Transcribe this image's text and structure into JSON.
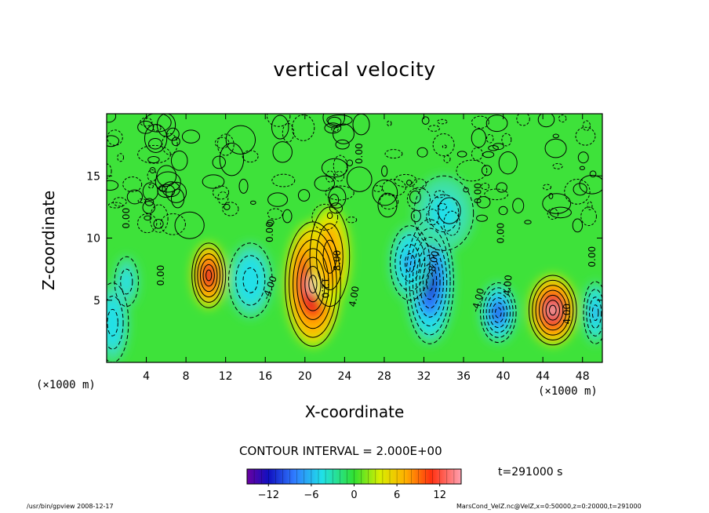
{
  "chart_data": {
    "type": "heatmap",
    "title": "vertical velocity",
    "xlabel": "X-coordinate",
    "ylabel": "Z-coordinate",
    "x_unit_left": "(×1000 m)",
    "x_unit_right": "(×1000 m)",
    "xlim": [
      0,
      50
    ],
    "ylim": [
      0,
      20
    ],
    "x_ticks": [
      4,
      8,
      12,
      16,
      20,
      24,
      28,
      32,
      36,
      40,
      44,
      48
    ],
    "x_tick_labels": [
      "4",
      "8",
      "12",
      "16",
      "20",
      "24",
      "28",
      "32",
      "36",
      "40",
      "44",
      "48"
    ],
    "y_ticks": [
      5,
      10,
      15
    ],
    "y_tick_labels": [
      "5",
      "10",
      "15"
    ],
    "colorbar": {
      "min": -15,
      "max": 15,
      "ticks": [
        -12,
        -6,
        0,
        6,
        12
      ],
      "tick_labels": [
        "−12",
        "−6",
        "0",
        "6",
        "12"
      ]
    },
    "contour_interval": "CONTOUR INTERVAL = 2.000E+00",
    "time": "t=291000 s",
    "cells": [
      {
        "x": 0.6,
        "z": 3.2,
        "value": -6,
        "rx": 1.6,
        "rz": 3.2
      },
      {
        "x": 2.0,
        "z": 6.5,
        "value": -4,
        "rx": 1.2,
        "rz": 2.0
      },
      {
        "x": 10.3,
        "z": 7.0,
        "value": 11,
        "rx": 1.7,
        "rz": 2.6
      },
      {
        "x": 14.5,
        "z": 6.6,
        "value": -6,
        "rx": 2.2,
        "rz": 3.0
      },
      {
        "x": 20.8,
        "z": 6.3,
        "value": 14,
        "rx": 2.8,
        "rz": 5.0
      },
      {
        "x": 22.5,
        "z": 8.5,
        "value": 6,
        "rx": 2.0,
        "rz": 4.0
      },
      {
        "x": 32.6,
        "z": 6.5,
        "value": -13,
        "rx": 2.4,
        "rz": 5.0
      },
      {
        "x": 30.6,
        "z": 8.0,
        "value": -7,
        "rx": 2.0,
        "rz": 3.0
      },
      {
        "x": 34.0,
        "z": 12.0,
        "value": -4,
        "rx": 3.0,
        "rz": 3.0
      },
      {
        "x": 39.5,
        "z": 4.0,
        "value": -12,
        "rx": 1.8,
        "rz": 2.4
      },
      {
        "x": 45.0,
        "z": 4.2,
        "value": 13,
        "rx": 2.4,
        "rz": 2.8
      },
      {
        "x": 49.3,
        "z": 4.0,
        "value": -7,
        "rx": 1.2,
        "rz": 2.5
      }
    ],
    "contour_labels": [
      {
        "x": 5.5,
        "z": 7.0,
        "text": "0.00",
        "angle": -90
      },
      {
        "x": 16.5,
        "z": 6.0,
        "text": "-4.00",
        "angle": -70
      },
      {
        "x": 22.0,
        "z": 6.0,
        "text": "12.0",
        "angle": 90
      },
      {
        "x": 23.3,
        "z": 8.2,
        "text": "8.00",
        "angle": -90
      },
      {
        "x": 25.0,
        "z": 5.3,
        "text": "4.00",
        "angle": -80
      },
      {
        "x": 16.5,
        "z": 10.5,
        "text": "0.00",
        "angle": -90
      },
      {
        "x": 25.5,
        "z": 16.8,
        "text": "0.00",
        "angle": -90
      },
      {
        "x": 33.0,
        "z": 8.0,
        "text": "-8.00",
        "angle": -80
      },
      {
        "x": 37.5,
        "z": 5.0,
        "text": "-4.00",
        "angle": -75
      },
      {
        "x": 40.5,
        "z": 6.2,
        "text": "4.00",
        "angle": -85
      },
      {
        "x": 46.5,
        "z": 3.9,
        "text": "4.00",
        "angle": -90
      },
      {
        "x": 2.0,
        "z": 11.6,
        "text": "0.00",
        "angle": -90
      },
      {
        "x": 37.5,
        "z": 13.6,
        "text": "0.00",
        "angle": -90
      },
      {
        "x": 49.0,
        "z": 8.5,
        "text": "0.00",
        "angle": -90
      },
      {
        "x": 39.8,
        "z": 10.4,
        "text": "0.00",
        "angle": -90
      }
    ]
  },
  "footer": {
    "left": "/usr/bin/gpview  2008-12-17",
    "right": "MarsCond_VelZ.nc@VelZ,x=0:50000,z=0:20000,t=291000"
  }
}
